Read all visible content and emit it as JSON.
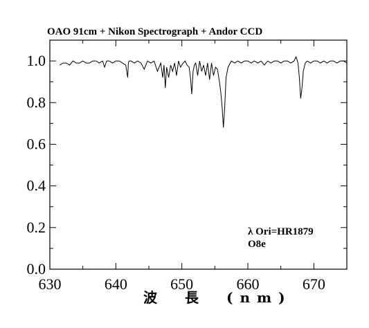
{
  "chart_data": {
    "type": "line",
    "title": "OAO 91cm + Nikon Spectrograph + Andor CCD",
    "xlabel": "波　長　(nm)",
    "ylabel": "",
    "xlim": [
      630,
      675
    ],
    "ylim": [
      0.0,
      1.1
    ],
    "x_ticks": [
      630,
      640,
      650,
      660,
      670
    ],
    "x_tick_labels": [
      "630",
      "640",
      "650",
      "660",
      "670"
    ],
    "y_ticks": [
      0.0,
      0.2,
      0.4,
      0.6,
      0.8,
      1.0
    ],
    "y_tick_labels": [
      "0.0",
      "0.2",
      "0.4",
      "0.6",
      "0.8",
      "1.0"
    ],
    "grid": false,
    "annotations": [
      "λ Ori=HR1879",
      "O8e"
    ],
    "series": [
      {
        "x": [
          631.5,
          632.0,
          632.5,
          633.0,
          633.5,
          634.0,
          634.5,
          635.0,
          635.5,
          636.0,
          636.5,
          637.0,
          637.5,
          638.0,
          638.3,
          638.6,
          639.0,
          639.5,
          640.0,
          640.5,
          641.0,
          641.5,
          641.8,
          641.9,
          642.0,
          642.3,
          642.8,
          643.3,
          643.8,
          644.3,
          644.8,
          645.3,
          645.8,
          646.3,
          646.8,
          647.1,
          647.3,
          647.5,
          647.7,
          648.0,
          648.3,
          648.6,
          648.9,
          649.2,
          649.5,
          649.8,
          650.2,
          650.5,
          650.8,
          651.1,
          651.3,
          651.5,
          651.7,
          651.9,
          652.1,
          652.4,
          652.7,
          653.0,
          653.3,
          653.6,
          653.9,
          654.2,
          654.5,
          654.8,
          655.1,
          655.4,
          655.7,
          655.9,
          656.1,
          656.3,
          656.5,
          656.7,
          657.0,
          657.5,
          658.0,
          658.5,
          659.0,
          659.5,
          660.0,
          660.5,
          661.0,
          661.5,
          662.0,
          662.5,
          663.0,
          663.5,
          664.0,
          664.5,
          665.0,
          665.5,
          666.0,
          666.5,
          667.0,
          667.3,
          667.6,
          667.8,
          668.0,
          668.2,
          668.4,
          668.7,
          669.0,
          669.5,
          670.0,
          670.5,
          671.0,
          671.5,
          672.0,
          672.5,
          673.0,
          673.5,
          674.0,
          674.5,
          675.0
        ],
        "y": [
          0.98,
          0.99,
          0.99,
          0.98,
          1.0,
          0.99,
          0.99,
          1.0,
          0.99,
          0.99,
          1.0,
          1.0,
          0.99,
          1.0,
          0.97,
          1.0,
          1.0,
          0.99,
          1.0,
          1.0,
          0.99,
          0.98,
          0.92,
          0.99,
          1.0,
          1.0,
          0.99,
          1.0,
          0.99,
          0.96,
          1.0,
          0.99,
          1.0,
          0.95,
          0.99,
          0.92,
          0.98,
          0.87,
          0.97,
          0.92,
          0.98,
          0.95,
          0.99,
          0.93,
          1.0,
          0.97,
          0.99,
          1.0,
          0.98,
          0.97,
          0.92,
          0.84,
          0.95,
          0.98,
          0.99,
          0.93,
          1.0,
          0.95,
          0.98,
          0.93,
          0.99,
          0.91,
          0.99,
          0.93,
          0.97,
          0.96,
          0.9,
          0.85,
          0.78,
          0.68,
          0.78,
          0.92,
          0.97,
          1.0,
          0.99,
          1.0,
          0.99,
          1.0,
          1.0,
          0.99,
          1.0,
          0.99,
          1.0,
          0.98,
          1.0,
          0.99,
          1.0,
          1.0,
          0.99,
          1.0,
          1.0,
          0.99,
          1.0,
          1.02,
          0.99,
          0.92,
          0.82,
          0.87,
          0.95,
          0.99,
          1.0,
          0.99,
          1.0,
          1.0,
          0.99,
          1.0,
          0.99,
          1.0,
          1.0,
          0.99,
          1.0,
          1.0,
          0.99
        ]
      }
    ]
  }
}
